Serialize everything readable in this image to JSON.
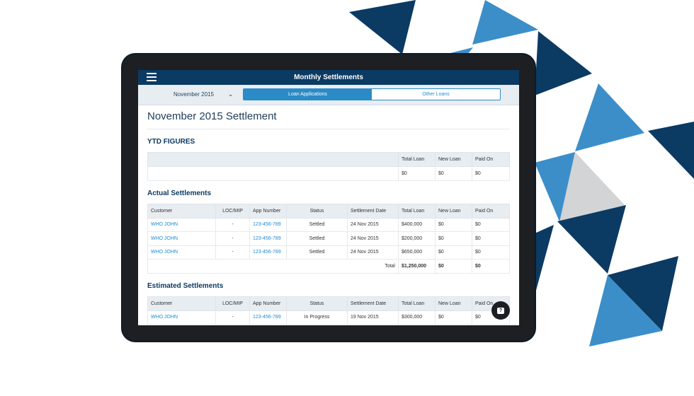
{
  "app": {
    "title": "Monthly Settlements"
  },
  "filter": {
    "month": "November 2015"
  },
  "tabs": [
    {
      "label": "Loan Applications",
      "active": true
    },
    {
      "label": "Other Loans",
      "active": false
    }
  ],
  "page_title": "November 2015 Settlement",
  "ytd": {
    "heading": "YTD FIGURES",
    "columns": [
      "Total Loan",
      "New Loan",
      "Paid On"
    ],
    "values": [
      "$0",
      "$0",
      "$0"
    ]
  },
  "actual": {
    "heading": "Actual Settlements",
    "columns": [
      "Customer",
      "LOC/MIP",
      "App Number",
      "Status",
      "Settlement Date",
      "Total Loan",
      "New Loan",
      "Paid On"
    ],
    "rows": [
      [
        "WHO JOHN",
        "-",
        "123-456-789",
        "Settled",
        "24 Nov 2015",
        "$400,000",
        "$0",
        "$0"
      ],
      [
        "WHO JOHN",
        "-",
        "123-456-789",
        "Settled",
        "24 Nov 2015",
        "$200,000",
        "$0",
        "$0"
      ],
      [
        "WHO JOHN",
        "-",
        "123-456-789",
        "Settled",
        "24 Nov 2015",
        "$650,000",
        "$0",
        "$0"
      ]
    ],
    "total_label": "Total",
    "totals": [
      "$1,250,000",
      "$0",
      "$0"
    ]
  },
  "estimated": {
    "heading": "Estimated Settlements",
    "columns": [
      "Customer",
      "LOC/MIP",
      "App Number",
      "Status",
      "Settlement Date",
      "Total Loan",
      "New Loan",
      "Paid On"
    ],
    "rows": [
      [
        "WHO JOHN",
        "-",
        "123-456-789",
        "In Progress",
        "19 Nov 2015",
        "$300,000",
        "$0",
        "$0"
      ]
    ]
  },
  "chat": {
    "glyph": "?"
  },
  "colors": {
    "navy": "#0b3a63",
    "accent": "#2b8bc7",
    "link": "#1f8ad1",
    "light_blue": "#3c8ec9",
    "grey": "#d3d4d6"
  }
}
